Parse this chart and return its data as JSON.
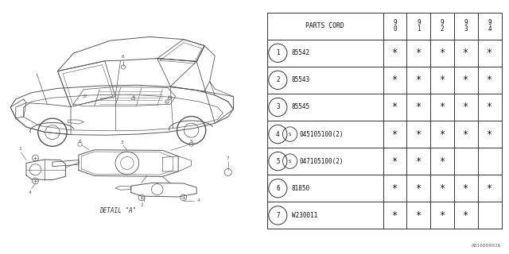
{
  "background_color": "#ffffff",
  "line_color": "#555555",
  "table": {
    "rows": [
      {
        "num": "1",
        "part": "85542",
        "has_s": false,
        "cols": [
          true,
          true,
          true,
          true,
          true
        ]
      },
      {
        "num": "2",
        "part": "85543",
        "has_s": false,
        "cols": [
          true,
          true,
          true,
          true,
          true
        ]
      },
      {
        "num": "3",
        "part": "85545",
        "has_s": false,
        "cols": [
          true,
          true,
          true,
          true,
          true
        ]
      },
      {
        "num": "4",
        "part": "045105100(2)",
        "has_s": true,
        "cols": [
          true,
          true,
          true,
          true,
          true
        ]
      },
      {
        "num": "5",
        "part": "047105100(2)",
        "has_s": true,
        "cols": [
          true,
          true,
          true,
          false,
          false
        ]
      },
      {
        "num": "6",
        "part": "81850",
        "has_s": false,
        "cols": [
          true,
          true,
          true,
          true,
          true
        ]
      },
      {
        "num": "7",
        "part": "W230011",
        "has_s": false,
        "cols": [
          true,
          true,
          true,
          true,
          false
        ]
      }
    ]
  },
  "year_cols": [
    "9\n0",
    "9\n1",
    "9\n2",
    "9\n3",
    "9\n4"
  ],
  "footer_text": "A816000026",
  "detail_label": "DETAIL \"A\""
}
